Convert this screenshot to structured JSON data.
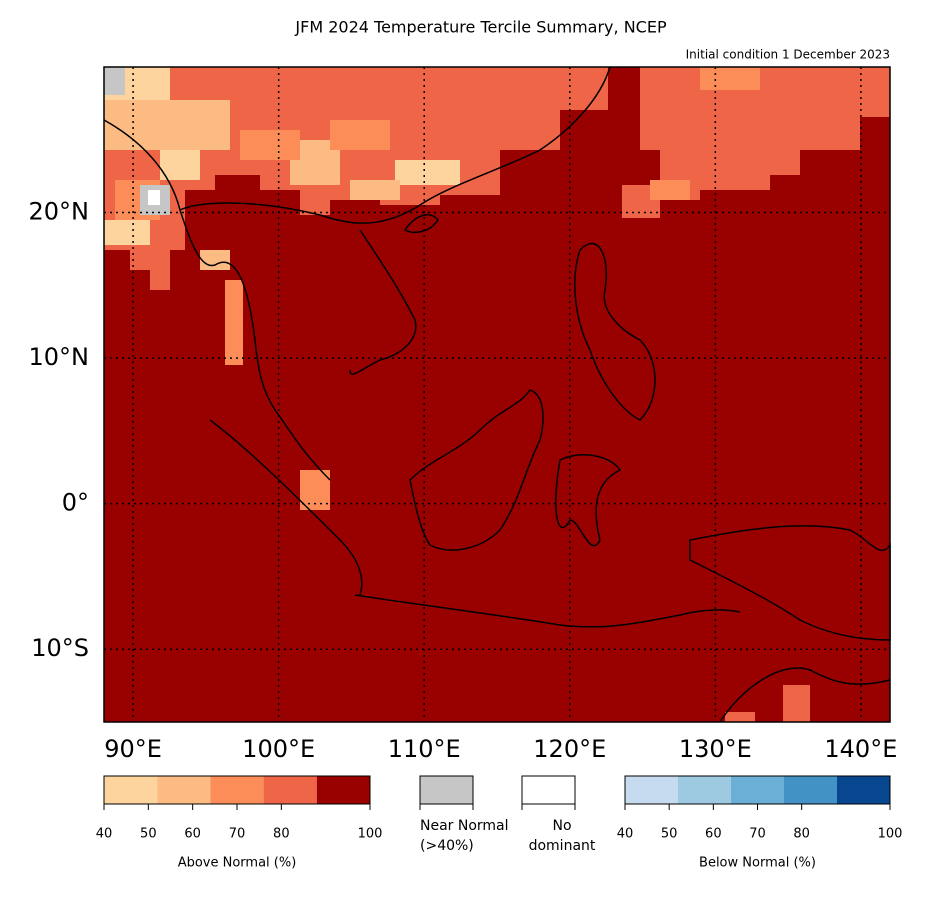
{
  "map": {
    "title": "JFM 2024 Temperature Tercile Summary, NCEP",
    "subtitle": "Initial condition 1 December 2023",
    "lon_range": [
      88,
      142
    ],
    "lat_range": [
      -15,
      30
    ],
    "lon_ticks": [
      {
        "value": 90,
        "label": "90°E"
      },
      {
        "value": 100,
        "label": "100°E"
      },
      {
        "value": 110,
        "label": "110°E"
      },
      {
        "value": 120,
        "label": "120°E"
      },
      {
        "value": 130,
        "label": "130°E"
      },
      {
        "value": 140,
        "label": "140°E"
      }
    ],
    "lat_ticks": [
      {
        "value": 20,
        "label": "20°N"
      },
      {
        "value": 10,
        "label": "10°N"
      },
      {
        "value": 0,
        "label": "0°"
      },
      {
        "value": -10,
        "label": "10°S"
      }
    ],
    "background_color": "#990000"
  },
  "legend": {
    "above": {
      "label": "Above Normal (%)",
      "range": [
        40,
        100
      ],
      "ticks": [
        40,
        50,
        60,
        70,
        80,
        100
      ],
      "colors": [
        "#fdd49e",
        "#fdbb84",
        "#fc8d59",
        "#ef6548",
        "#990000"
      ]
    },
    "near": {
      "lines": [
        "Near Normal",
        "(>40%)"
      ],
      "color": "#c6c6c6"
    },
    "none": {
      "lines": [
        "No",
        "dominant"
      ],
      "color": "#ffffff"
    },
    "below": {
      "label": "Below Normal (%)",
      "range": [
        40,
        100
      ],
      "ticks": [
        40,
        50,
        60,
        70,
        80,
        100
      ],
      "colors": [
        "#c6dbef",
        "#9ecae1",
        "#6baed6",
        "#4292c6",
        "#08468f"
      ]
    }
  }
}
